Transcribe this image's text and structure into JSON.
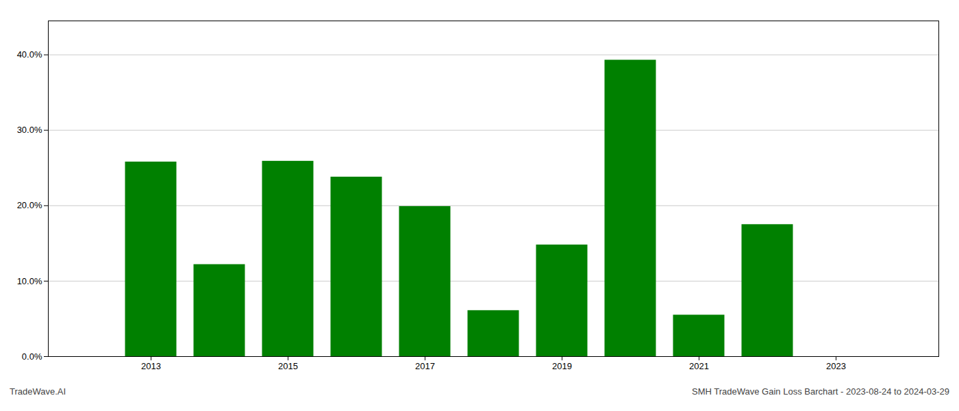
{
  "chart_data": {
    "type": "bar",
    "x": [
      2013,
      2014,
      2015,
      2016,
      2017,
      2018,
      2019,
      2020,
      2021,
      2022
    ],
    "values": [
      0.258,
      0.122,
      0.259,
      0.238,
      0.199,
      0.061,
      0.148,
      0.393,
      0.055,
      0.175
    ],
    "color": "#008000",
    "xlim": [
      2011.5,
      2024.5
    ],
    "xticks": [
      2013,
      2015,
      2017,
      2019,
      2021,
      2023
    ],
    "ylim": [
      0.0,
      0.445
    ],
    "yticks": [
      {
        "value": 0.0,
        "label": "0.0%"
      },
      {
        "value": 0.1,
        "label": "10.0%"
      },
      {
        "value": 0.2,
        "label": "20.0%"
      },
      {
        "value": 0.3,
        "label": "30.0%"
      },
      {
        "value": 0.4,
        "label": "40.0%"
      }
    ],
    "grid": true,
    "annotations": [
      "TradeWave.AI",
      "SMH TradeWave Gain Loss Barchart - 2023-08-24 to 2024-03-29"
    ]
  }
}
